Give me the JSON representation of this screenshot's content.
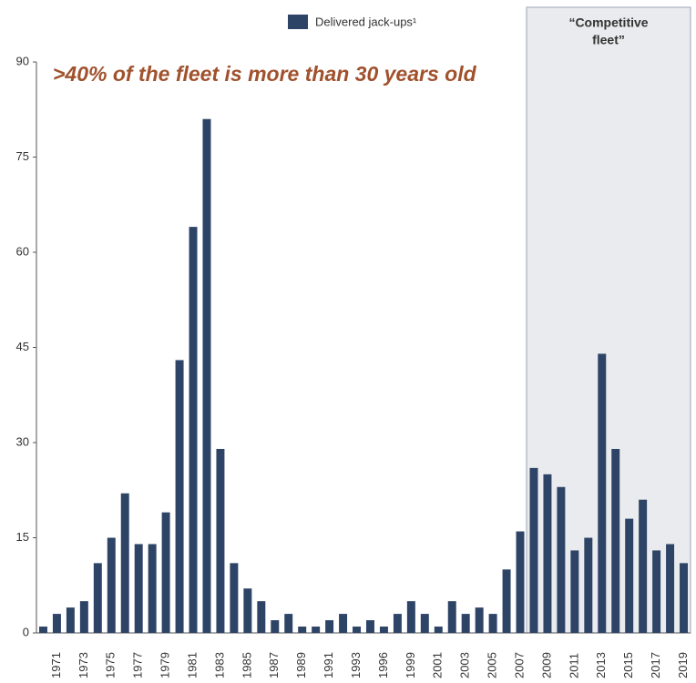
{
  "chart_data": {
    "type": "bar",
    "annotation": ">40% of the fleet is more than 30 years old",
    "region_label": [
      "“Competitive",
      "fleet”"
    ],
    "categories": [
      null,
      "1971",
      null,
      "1973",
      null,
      "1975",
      null,
      "1977",
      null,
      "1979",
      null,
      "1981",
      null,
      "1983",
      null,
      "1985",
      null,
      "1987",
      null,
      "1989",
      null,
      "1991",
      null,
      "1993",
      null,
      "1996",
      null,
      "1999",
      null,
      "2001",
      null,
      "2003",
      null,
      "2005",
      null,
      "2007",
      null,
      "2009",
      null,
      "2011",
      null,
      "2013",
      null,
      "2015",
      null,
      "2017",
      null,
      "2019"
    ],
    "series": [
      {
        "name": "Delivered jack-ups¹",
        "color": "#2e4466",
        "values": [
          1,
          3,
          4,
          5,
          11,
          15,
          22,
          14,
          14,
          19,
          43,
          64,
          81,
          29,
          11,
          7,
          5,
          2,
          3,
          1,
          1,
          2,
          3,
          1,
          2,
          1,
          3,
          5,
          3,
          1,
          5,
          3,
          4,
          3,
          10,
          16,
          26,
          25,
          23,
          13,
          15,
          44,
          29,
          18,
          21,
          13,
          14,
          11
        ]
      }
    ],
    "ylim": [
      0,
      90
    ],
    "yticks": [
      0,
      15,
      30,
      45,
      60,
      75,
      90
    ],
    "legend": "top"
  }
}
